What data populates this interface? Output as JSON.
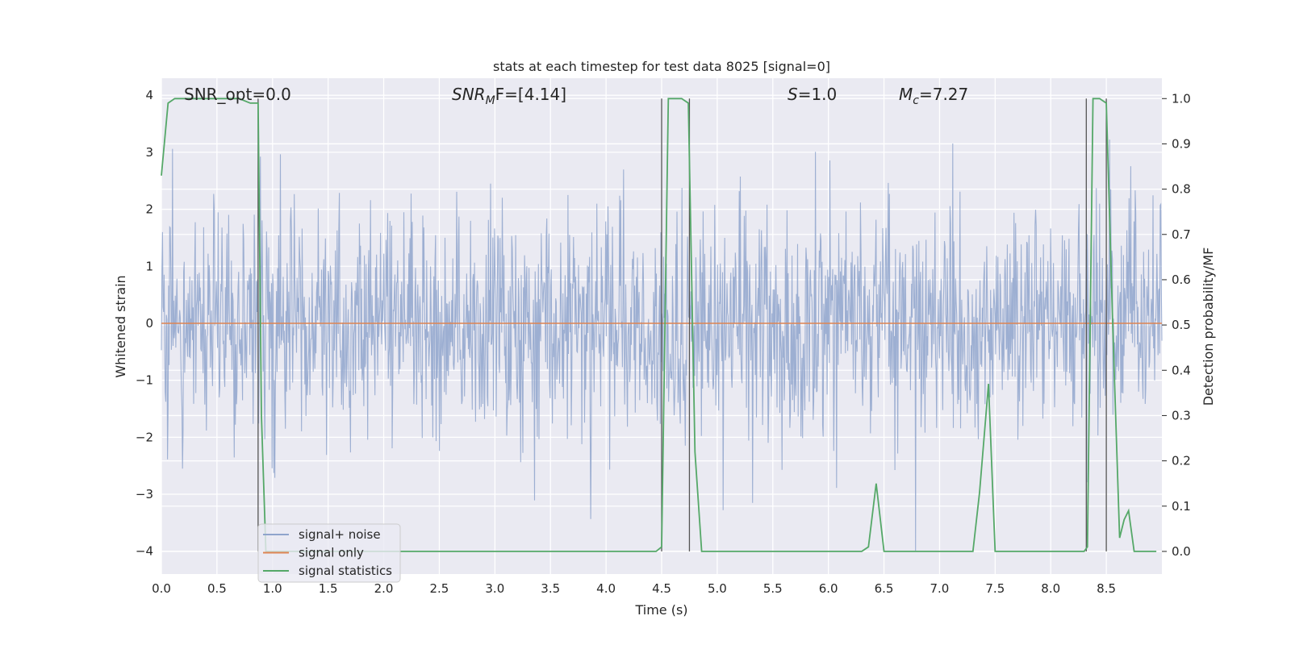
{
  "chart_data": {
    "type": "line",
    "title": "stats at each timestep for test data 8025 [signal=0]",
    "xlabel": "Time (s)",
    "ylabel": "Whitened strain",
    "y2label": "Detection probability/MF",
    "xlim": [
      0.0,
      9.0
    ],
    "ylim": [
      -4.4,
      4.3
    ],
    "y2lim": [
      -0.05,
      1.045
    ],
    "grid": true,
    "legend_position": "lower-left",
    "x_ticks": [
      "0.0",
      "0.5",
      "1.0",
      "1.5",
      "2.0",
      "2.5",
      "3.0",
      "3.5",
      "4.0",
      "4.5",
      "5.0",
      "5.5",
      "6.0",
      "6.5",
      "7.0",
      "7.5",
      "8.0",
      "8.5"
    ],
    "y_ticks": [
      "4",
      "3",
      "2",
      "1",
      "0",
      "−1",
      "−2",
      "−3",
      "−4"
    ],
    "y2_ticks": [
      "1.0",
      "0.9",
      "0.8",
      "0.7",
      "0.6",
      "0.5",
      "0.4",
      "0.3",
      "0.2",
      "0.1",
      "0.0"
    ],
    "annotations": {
      "snr_opt": "SNR_opt=0.0",
      "snr_mf_base": "SNR",
      "snr_mf_sub": "M",
      "snr_mf_tail": "F=[4.14]",
      "s_base": "S",
      "s_tail": "=1.0",
      "mc_base": "M",
      "mc_sub": "c",
      "mc_tail": "=7.27"
    },
    "series": [
      {
        "name": "signal+ noise",
        "color": "#8fa4cc",
        "description": "whitened strain noise, amplitude mostly within ±2.5, peaks to ±4",
        "envelope": {
          "core": 1.6,
          "max": 3.95,
          "min": -4.0
        }
      },
      {
        "name": "signal only",
        "color": "#dd8452",
        "x": [
          0.0,
          9.0
        ],
        "y": [
          0.0,
          0.0
        ]
      },
      {
        "name": "signal statistics",
        "color": "#55a868",
        "axis": "y2",
        "x": [
          0.0,
          0.06,
          0.12,
          0.2,
          0.3,
          0.4,
          0.5,
          0.6,
          0.7,
          0.8,
          0.87,
          0.9,
          0.94,
          0.98,
          1.1,
          1.5,
          2.0,
          2.5,
          3.0,
          3.5,
          4.0,
          4.45,
          4.5,
          4.56,
          4.62,
          4.68,
          4.74,
          4.8,
          4.86,
          4.92,
          5.5,
          6.0,
          6.3,
          6.36,
          6.43,
          6.5,
          6.6,
          7.0,
          7.3,
          7.36,
          7.44,
          7.5,
          7.6,
          8.0,
          8.3,
          8.33,
          8.38,
          8.44,
          8.5,
          8.56,
          8.62,
          8.66,
          8.7,
          8.75,
          8.82,
          8.88,
          8.95
        ],
        "y": [
          0.83,
          0.99,
          1.0,
          1.0,
          1.0,
          1.0,
          1.0,
          1.0,
          1.0,
          0.99,
          0.99,
          0.3,
          0.0,
          0.0,
          0.0,
          0.0,
          0.0,
          0.0,
          0.0,
          0.0,
          0.0,
          0.0,
          0.01,
          1.0,
          1.0,
          1.0,
          0.99,
          0.22,
          0.0,
          0.0,
          0.0,
          0.0,
          0.0,
          0.01,
          0.15,
          0.0,
          0.0,
          0.0,
          0.0,
          0.13,
          0.37,
          0.0,
          0.0,
          0.0,
          0.0,
          0.01,
          1.0,
          1.0,
          0.99,
          0.48,
          0.03,
          0.07,
          0.09,
          0.0,
          0.0,
          0.0,
          0.0
        ]
      }
    ],
    "vertical_markers": [
      0.87,
      4.5,
      4.75,
      8.32,
      8.5
    ]
  }
}
